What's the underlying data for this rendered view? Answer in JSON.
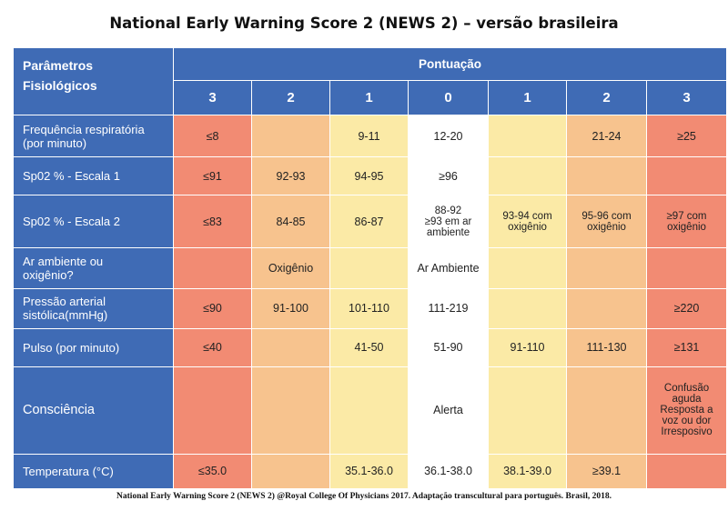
{
  "title": "National Early Warning Score 2 (NEWS 2) – versão brasileira",
  "header": {
    "param_title_line1": "Parâmetros",
    "param_title_line2": "Fisiológicos",
    "pontuacao": "Pontuação",
    "scores": [
      "3",
      "2",
      "1",
      "0",
      "1",
      "2",
      "3"
    ]
  },
  "colors": {
    "header_blue": "#3f6bb5",
    "score_3": "#f28b73",
    "score_2": "#f7c38e",
    "score_1": "#fbeaa6",
    "score_0": "#ffffff"
  },
  "rows": [
    {
      "label_line1": "Frequência respiratória",
      "label_line2": "(por minuto)",
      "cells": [
        "≤8",
        "",
        "9-11",
        "12-20",
        "",
        "21-24",
        "≥25"
      ]
    },
    {
      "label_line1": "Sp02  % - Escala 1",
      "label_line2": "",
      "cells": [
        "≤91",
        "92-93",
        "94-95",
        "≥96",
        "",
        "",
        ""
      ]
    },
    {
      "label_line1": "Sp02 % - Escala 2",
      "label_line2": "",
      "cells": [
        "≤83",
        "84-85",
        "86-87",
        "88-92\n≥93 em ar\nambiente",
        "93-94 com\noxigênio",
        "95-96 com\noxigênio",
        "≥97 com\noxigênio"
      ]
    },
    {
      "label_line1": "Ar ambiente ou",
      "label_line2": "oxigênio?",
      "cells": [
        "",
        "Oxigênio",
        "",
        "Ar Ambiente",
        "",
        "",
        ""
      ]
    },
    {
      "label_line1": "Pressão arterial",
      "label_line2": "sistólica(mmHg)",
      "cells": [
        "≤90",
        "91-100",
        "101-110",
        "111-219",
        "",
        "",
        "≥220"
      ]
    },
    {
      "label_line1": "Pulso (por minuto)",
      "label_line2": "",
      "cells": [
        "≤40",
        "",
        "41-50",
        "51-90",
        "91-110",
        "111-130",
        "≥131"
      ]
    },
    {
      "label_line1": "Consciência",
      "label_line2": "",
      "cells": [
        "",
        "",
        "",
        "Alerta",
        "",
        "",
        "Confusão\naguda\nResposta a\nvoz ou dor\nIrresposivo"
      ]
    },
    {
      "label_line1": "Temperatura (°C)",
      "label_line2": "",
      "cells": [
        "≤35.0",
        "",
        "35.1-36.0",
        "36.1-38.0",
        "38.1-39.0",
        "≥39.1",
        ""
      ]
    }
  ],
  "footer": "National Early Warning Score 2 (NEWS 2) @Royal College Of Physicians 2017. Adaptação transcultural para português. Brasil, 2018."
}
